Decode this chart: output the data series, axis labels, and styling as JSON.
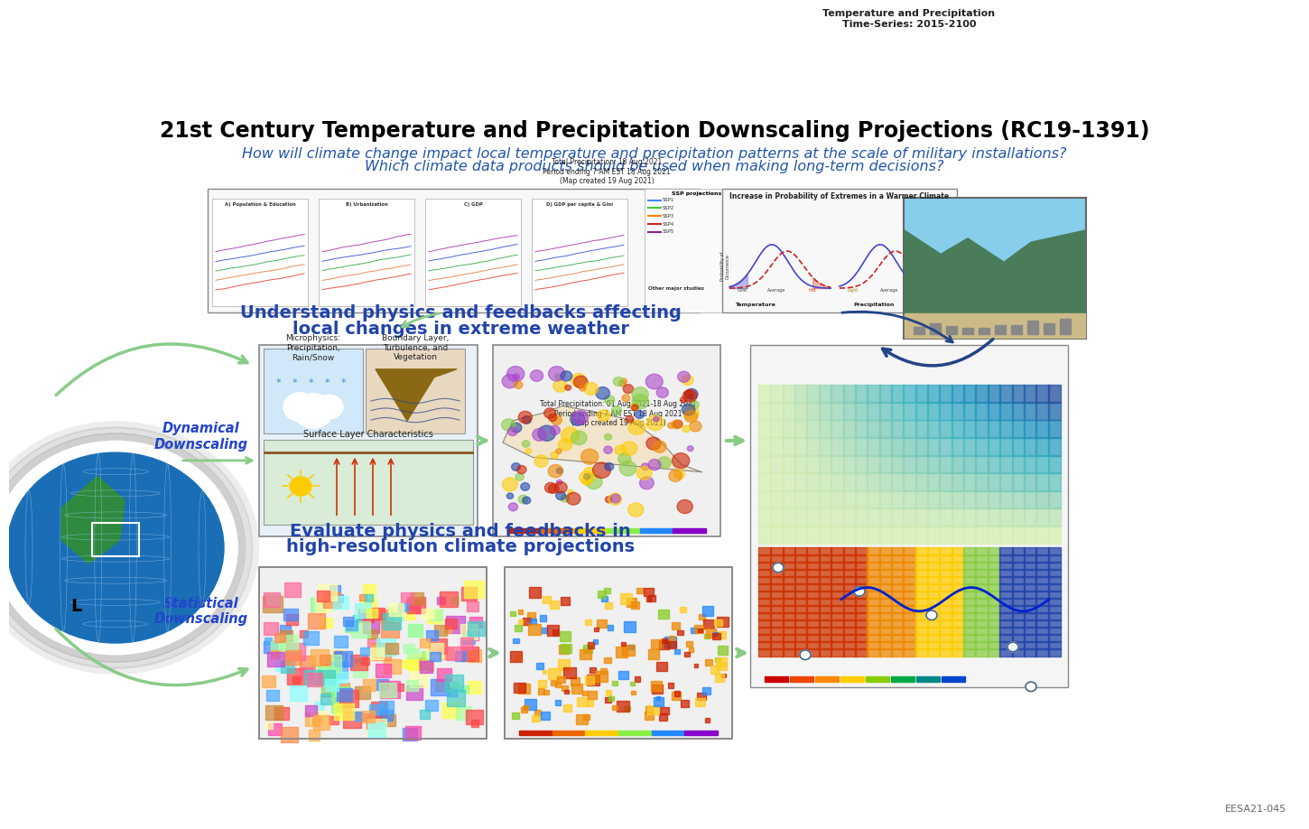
{
  "title_main": "21st Century Temperature and Precipitation Downscaling Projections",
  "title_code": "(RC19-1391)",
  "subtitle1": "How will climate change impact local temperature and precipitation patterns at the scale of military installations?",
  "subtitle2": "Which climate data products should be used when making long-term decisions?",
  "footer": "EESA21-045",
  "bg_color": "#ffffff",
  "title_color": "#000000",
  "subtitle_color": "#2255aa",
  "dynamical_label": "Dynamical\nDownscaling",
  "statistical_label": "Statistical\nDownscaling",
  "middle_header1": "Understand physics and feedbacks affecting",
  "middle_header2": "local changes in extreme weather",
  "lower_header1": "Evaluate physics and feedbacks in",
  "lower_header2": "high-resolution climate projections",
  "physics_box1_title": "Microphysics:\nPrecipitation,\nRain/Snow",
  "physics_box2_title": "Boundary Layer,\nTurbulence, and\nVegetation",
  "physics_box3_title": "Surface Layer Characteristics",
  "ts_label": "Temperature and Precipitation\nTime-Series: 2015-2100",
  "precip_upper_title": "Total Precipitation: 18 Aug 2021\nPeriod ending 7 AM EST 18 Aug 2021\n(Map created 19 Aug 2021)",
  "precip_lower_title": "Total Precipitation: 01 Aug 2021-18 Aug 2021\nPeriod ending 7 AM EST 18 Aug 2021\n(Map created 19 Aug 2021)",
  "panel_labels": [
    "A) Population & Education",
    "B) Urbanization",
    "C) GDP",
    "D) GDP per capita & Gini"
  ],
  "ssp_entries": [
    [
      "SSP1",
      "#4488ff"
    ],
    [
      "SSP2",
      "#44cc44"
    ],
    [
      "SSP3",
      "#ff8800"
    ],
    [
      "SSP4",
      "#cc2222"
    ],
    [
      "SSP5",
      "#882288"
    ]
  ],
  "cbar_colors": [
    "#cc2200",
    "#ee6600",
    "#ffcc00",
    "#88ee44",
    "#2288ff",
    "#8800cc"
  ],
  "zone_colors": [
    "#ff6699",
    "#ffaa44",
    "#ffffaa",
    "#aaffaa",
    "#44aaff",
    "#ff44aa",
    "#cc8833",
    "#88ff88",
    "#4488ff",
    "#ffff44",
    "#ff8844",
    "#88ffff",
    "#cc44cc",
    "#44cccc",
    "#ff4444"
  ],
  "arrow_color": "#88cc88",
  "globe_color": "#1a6eb5",
  "land_color": "#2d8a3e"
}
